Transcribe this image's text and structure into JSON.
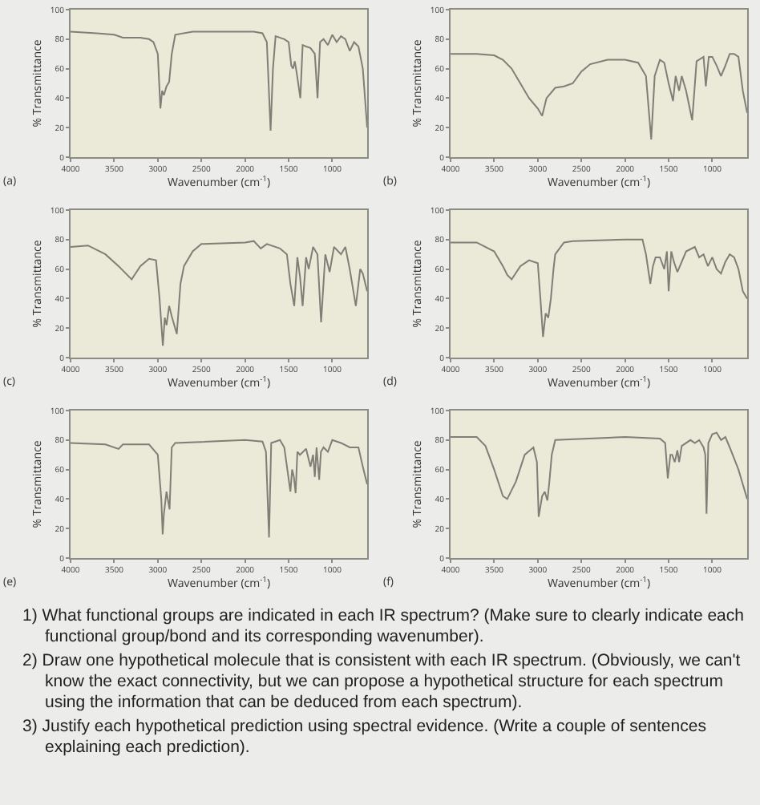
{
  "chart_data": [
    {
      "type": "line",
      "xlabel": "Wavenumber (cm$^{-1}$)",
      "ylabel": "% Transmittance",
      "annotations": [
        "(a)"
      ],
      "xlim": [
        4000,
        600
      ],
      "xticks": [
        4000,
        3500,
        3000,
        2500,
        2000,
        1500,
        1000
      ],
      "ylim": [
        0,
        100
      ],
      "yticks": [
        0,
        20,
        40,
        60,
        80,
        100
      ],
      "color": "#7f7f78",
      "x": [
        4000,
        3700,
        3500,
        3400,
        3200,
        3100,
        3050,
        3000,
        2970,
        2950,
        2930,
        2900,
        2870,
        2840,
        2800,
        2600,
        2200,
        1900,
        1800,
        1750,
        1707,
        1680,
        1650,
        1550,
        1500,
        1470,
        1450,
        1430,
        1410,
        1366,
        1340,
        1300,
        1250,
        1200,
        1169,
        1140,
        1100,
        1050,
        1000,
        950,
        900,
        850,
        800,
        750,
        700,
        650,
        600
      ],
      "values": [
        85,
        84,
        83,
        81,
        81,
        80,
        78,
        70,
        33,
        45,
        42,
        48,
        51,
        70,
        83,
        85,
        85,
        85,
        84,
        78,
        18,
        60,
        82,
        80,
        78,
        62,
        60,
        65,
        58,
        40,
        76,
        75,
        74,
        70,
        40,
        78,
        80,
        76,
        83,
        78,
        82,
        80,
        72,
        78,
        75,
        60,
        20
      ]
    },
    {
      "type": "line",
      "xlabel": "Wavenumber (cm$^{-1}$)",
      "ylabel": "% Transmittance",
      "annotations": [
        "(b)"
      ],
      "xlim": [
        4000,
        600
      ],
      "xticks": [
        4000,
        3500,
        3000,
        2500,
        2000,
        1500,
        1000
      ],
      "ylim": [
        0,
        100
      ],
      "yticks": [
        0,
        20,
        40,
        60,
        80,
        100
      ],
      "color": "#7f7f78",
      "x": [
        4000,
        3700,
        3500,
        3400,
        3300,
        3200,
        3100,
        3000,
        2950,
        2900,
        2800,
        2700,
        2600,
        2500,
        2400,
        2200,
        2000,
        1850,
        1760,
        1700,
        1660,
        1600,
        1550,
        1500,
        1450,
        1420,
        1380,
        1350,
        1300,
        1230,
        1180,
        1100,
        1074,
        1040,
        1000,
        950,
        900,
        850,
        800,
        750,
        700,
        650,
        600
      ],
      "values": [
        70,
        70,
        69,
        66,
        60,
        50,
        40,
        33,
        28,
        40,
        47,
        48,
        50,
        58,
        63,
        66,
        66,
        64,
        55,
        12,
        55,
        66,
        64,
        50,
        38,
        55,
        45,
        55,
        45,
        25,
        65,
        68,
        48,
        68,
        68,
        62,
        55,
        62,
        70,
        70,
        68,
        45,
        30
      ]
    },
    {
      "type": "line",
      "xlabel": "Wavenumber (cm$^{-1}$)",
      "ylabel": "% Transmittance",
      "annotations": [
        "(c)"
      ],
      "xlim": [
        4000,
        600
      ],
      "xticks": [
        4000,
        3500,
        3000,
        2500,
        2000,
        1500,
        1000
      ],
      "ylim": [
        0,
        100
      ],
      "yticks": [
        0,
        20,
        40,
        60,
        80,
        100
      ],
      "color": "#7f7f78",
      "x": [
        4000,
        3800,
        3600,
        3450,
        3300,
        3200,
        3100,
        3020,
        2980,
        2942,
        2920,
        2900,
        2870,
        2840,
        2782,
        2740,
        2700,
        2600,
        2500,
        2000,
        1900,
        1820,
        1750,
        1600,
        1520,
        1480,
        1436,
        1400,
        1370,
        1340,
        1300,
        1270,
        1220,
        1170,
        1128,
        1080,
        1030,
        980,
        900,
        850,
        800,
        730,
        680,
        650,
        600
      ],
      "values": [
        75,
        76,
        70,
        62,
        53,
        62,
        67,
        66,
        40,
        8,
        27,
        22,
        35,
        28,
        16,
        50,
        62,
        72,
        77,
        78,
        79,
        74,
        77,
        74,
        70,
        50,
        35,
        68,
        55,
        35,
        68,
        60,
        75,
        70,
        24,
        70,
        58,
        75,
        70,
        75,
        60,
        35,
        60,
        57,
        45
      ]
    },
    {
      "type": "line",
      "xlabel": "Wavenumber (cm$^{-1}$)",
      "ylabel": "% Transmittance",
      "annotations": [
        "(d)"
      ],
      "xlim": [
        4000,
        600
      ],
      "xticks": [
        4000,
        3500,
        3000,
        2500,
        2000,
        1500,
        1000
      ],
      "ylim": [
        0,
        100
      ],
      "yticks": [
        0,
        20,
        40,
        60,
        80,
        100
      ],
      "color": "#7f7f78",
      "x": [
        4000,
        3700,
        3500,
        3400,
        3350,
        3300,
        3200,
        3100,
        3000,
        2970,
        2940,
        2910,
        2880,
        2850,
        2820,
        2800,
        2700,
        2600,
        2000,
        1800,
        1760,
        1710,
        1680,
        1650,
        1600,
        1550,
        1520,
        1500,
        1470,
        1440,
        1400,
        1300,
        1200,
        1150,
        1100,
        1050,
        1000,
        950,
        900,
        850,
        800,
        750,
        700,
        650,
        600
      ],
      "values": [
        78,
        78,
        72,
        62,
        56,
        53,
        62,
        66,
        64,
        40,
        14,
        30,
        27,
        40,
        60,
        70,
        78,
        79,
        80,
        80,
        70,
        50,
        62,
        68,
        68,
        60,
        72,
        45,
        72,
        65,
        58,
        72,
        75,
        68,
        70,
        62,
        68,
        60,
        57,
        65,
        70,
        68,
        60,
        45,
        40
      ]
    },
    {
      "type": "line",
      "xlabel": "Wavenumber (cm$^{-1}$)",
      "ylabel": "% Transmittance",
      "annotations": [
        "(e)"
      ],
      "xlim": [
        4000,
        600
      ],
      "xticks": [
        4000,
        3500,
        3000,
        2500,
        2000,
        1500,
        1000
      ],
      "ylim": [
        0,
        100
      ],
      "yticks": [
        0,
        20,
        40,
        60,
        80,
        100
      ],
      "color": "#7f7f78",
      "x": [
        4000,
        3600,
        3450,
        3400,
        3100,
        3000,
        2960,
        2944,
        2930,
        2900,
        2865,
        2840,
        2800,
        2000,
        1800,
        1760,
        1725,
        1700,
        1600,
        1550,
        1480,
        1460,
        1440,
        1420,
        1400,
        1370,
        1300,
        1250,
        1220,
        1200,
        1180,
        1150,
        1130,
        1100,
        1050,
        1000,
        900,
        800,
        700,
        650,
        600
      ],
      "values": [
        78,
        77,
        74,
        77,
        77,
        70,
        40,
        16,
        30,
        45,
        33,
        75,
        78,
        80,
        79,
        72,
        14,
        78,
        80,
        75,
        45,
        60,
        55,
        44,
        72,
        70,
        74,
        62,
        70,
        55,
        75,
        53,
        72,
        75,
        72,
        80,
        78,
        75,
        75,
        62,
        50
      ]
    },
    {
      "type": "line",
      "xlabel": "Wavenumber (cm$^{-1}$)",
      "ylabel": "% Transmittance",
      "annotations": [
        "(f)"
      ],
      "xlim": [
        4000,
        600
      ],
      "xticks": [
        4000,
        3500,
        3000,
        2500,
        2000,
        1500,
        1000
      ],
      "ylim": [
        0,
        100
      ],
      "yticks": [
        0,
        20,
        40,
        60,
        80,
        100
      ],
      "color": "#7f7f78",
      "x": [
        4000,
        3700,
        3600,
        3500,
        3400,
        3350,
        3250,
        3150,
        3050,
        3010,
        2990,
        2950,
        2920,
        2890,
        2870,
        2840,
        2800,
        2000,
        1600,
        1540,
        1510,
        1480,
        1460,
        1430,
        1400,
        1380,
        1350,
        1250,
        1200,
        1150,
        1100,
        1080,
        1066,
        1045,
        1000,
        950,
        900,
        850,
        800,
        700,
        650,
        600
      ],
      "values": [
        82,
        82,
        76,
        60,
        42,
        40,
        52,
        70,
        75,
        65,
        28,
        42,
        45,
        39,
        50,
        70,
        80,
        82,
        81,
        78,
        54,
        70,
        70,
        65,
        73,
        65,
        76,
        80,
        78,
        80,
        75,
        70,
        30,
        78,
        84,
        85,
        80,
        82,
        75,
        60,
        50,
        40
      ]
    },
    {
      "type": "other",
      "annotations": [
        "1) What functional groups are indicated in each IR spectrum? (Make sure to clearly indicate each functional group/bond and its corresponding wavenumber).",
        "2) Draw one hypothetical molecule that is consistent with each IR spectrum. (Obviously, we can't know the exact connectivity, but we can propose a hypothetical structure for each spectrum using the information that can be deduced from each spectrum).",
        "3) Justify each hypothetical prediction using spectral evidence. (Write a couple of sentences explaining each prediction)."
      ]
    }
  ]
}
